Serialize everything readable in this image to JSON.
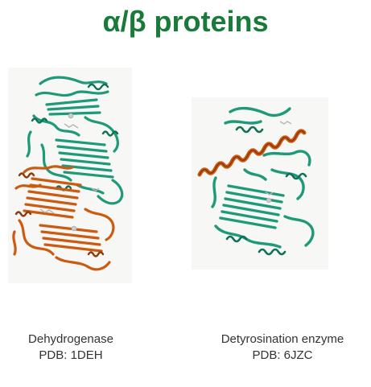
{
  "title": "α/β proteins",
  "colors": {
    "title": "#1a7a3a",
    "teal": "#1f9a78",
    "teal_dark": "#137058",
    "orange": "#cc5a10",
    "orange_dark": "#8e3a08",
    "caption": "#333333"
  },
  "structures": [
    {
      "name": "Dehydrogenase",
      "pdb": "PDB: 1DEH"
    },
    {
      "name": "Detyrosination enzyme",
      "pdb": "PDB: 6JZC"
    }
  ]
}
